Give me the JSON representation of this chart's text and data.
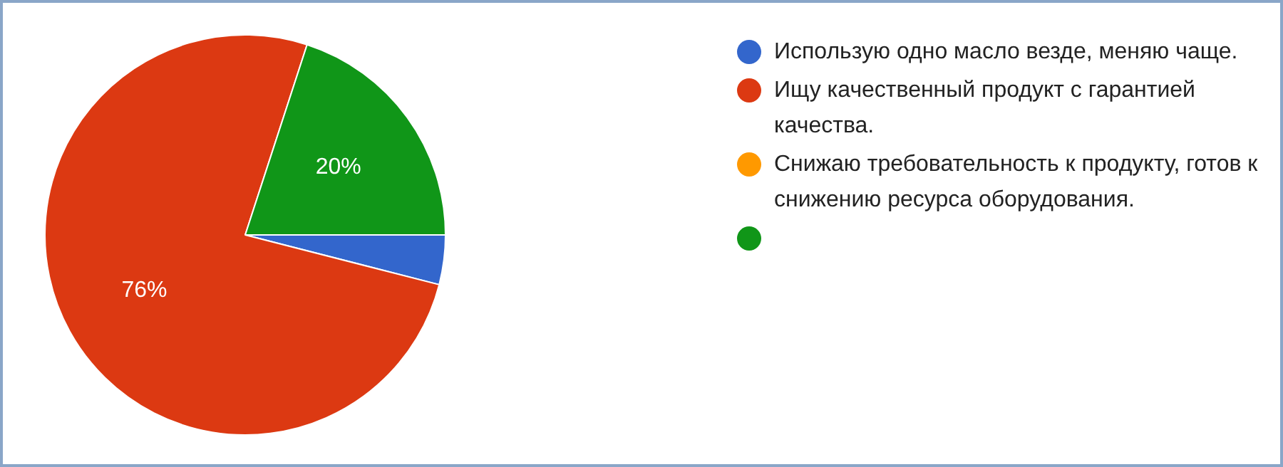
{
  "chart_data": {
    "type": "pie",
    "categories": [
      "Использую одно масло везде, меняю чаще.",
      "Ищу качественный продукт с гарантией качества.",
      "Снижаю требовательность к продукту, готов к снижению ресурса оборудования.",
      null
    ],
    "values": [
      4,
      76,
      0,
      20
    ],
    "colors": [
      "#3366cc",
      "#dc3912",
      "#ff9900",
      "#109618"
    ],
    "value_labels": [
      null,
      "76%",
      null,
      "20%"
    ],
    "legend": "right"
  }
}
